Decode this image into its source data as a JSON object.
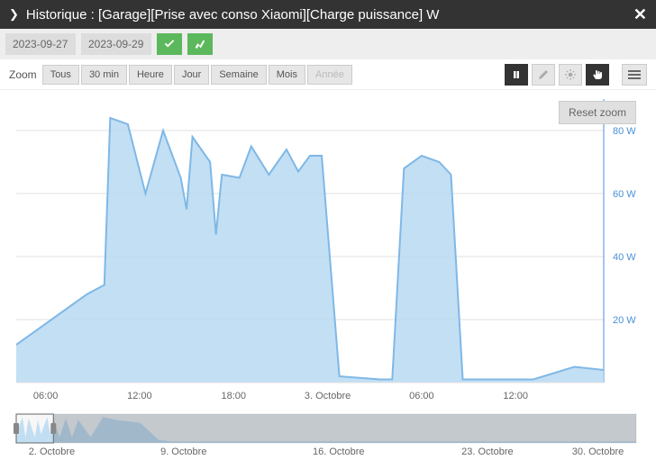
{
  "header": {
    "title": "Historique : [Garage][Prise avec conso Xiaomi][Charge puissance] W"
  },
  "toolbar": {
    "date_from": "2023-09-27",
    "date_to": "2023-09-29",
    "confirm_icon": "check",
    "compare_icon": "chart"
  },
  "zoom": {
    "label": "Zoom",
    "buttons": [
      "Tous",
      "30 min",
      "Heure",
      "Jour",
      "Semaine",
      "Mois",
      "Année"
    ],
    "disabled_index": 6
  },
  "reset_zoom_label": "Reset zoom",
  "chart": {
    "type": "area",
    "y_unit": "W",
    "background_color": "#ffffff",
    "grid_color": "#e0e0e0",
    "series_fill": "#b9d9f2",
    "series_stroke": "#7fb8e6",
    "axis_text_color": "#666666",
    "y_axis_color": "#4a90d9",
    "ylim": [
      0,
      90
    ],
    "yticks": [
      20,
      40,
      60,
      80
    ],
    "ytick_labels": [
      "20 W",
      "40 W",
      "60 W",
      "80 W"
    ],
    "xticks": [
      0.05,
      0.21,
      0.37,
      0.53,
      0.69,
      0.85
    ],
    "xtick_labels": [
      "06:00",
      "12:00",
      "18:00",
      "3. Octobre",
      "06:00",
      "12:00"
    ],
    "data": [
      [
        0.0,
        12
      ],
      [
        0.12,
        28
      ],
      [
        0.15,
        31
      ],
      [
        0.16,
        84
      ],
      [
        0.19,
        82
      ],
      [
        0.22,
        60
      ],
      [
        0.25,
        80
      ],
      [
        0.28,
        65
      ],
      [
        0.29,
        55
      ],
      [
        0.3,
        78
      ],
      [
        0.33,
        70
      ],
      [
        0.34,
        47
      ],
      [
        0.35,
        66
      ],
      [
        0.38,
        65
      ],
      [
        0.4,
        75
      ],
      [
        0.43,
        66
      ],
      [
        0.46,
        74
      ],
      [
        0.48,
        67
      ],
      [
        0.5,
        72
      ],
      [
        0.52,
        72
      ],
      [
        0.55,
        2
      ],
      [
        0.62,
        1
      ],
      [
        0.64,
        1
      ],
      [
        0.66,
        68
      ],
      [
        0.69,
        72
      ],
      [
        0.72,
        70
      ],
      [
        0.74,
        66
      ],
      [
        0.76,
        1
      ],
      [
        0.88,
        1
      ],
      [
        0.95,
        5
      ],
      [
        1.0,
        4
      ]
    ]
  },
  "navigator": {
    "xticks": [
      0.02,
      0.27,
      0.52,
      0.76,
      0.98
    ],
    "xtick_labels": [
      "2. Octobre",
      "9. Octobre",
      "16. Octobre",
      "23. Octobre",
      "30. Octobre"
    ],
    "window": [
      0.0,
      0.06
    ],
    "data": [
      [
        0.0,
        0.3
      ],
      [
        0.01,
        0.9
      ],
      [
        0.015,
        0.2
      ],
      [
        0.02,
        0.85
      ],
      [
        0.03,
        0.2
      ],
      [
        0.035,
        0.8
      ],
      [
        0.04,
        0.3
      ],
      [
        0.05,
        0.9
      ],
      [
        0.055,
        0.3
      ],
      [
        0.06,
        0.85
      ],
      [
        0.07,
        0.2
      ],
      [
        0.08,
        0.85
      ],
      [
        0.09,
        0.2
      ],
      [
        0.1,
        0.8
      ],
      [
        0.12,
        0.2
      ],
      [
        0.14,
        0.9
      ],
      [
        0.16,
        0.8
      ],
      [
        0.2,
        0.7
      ],
      [
        0.23,
        0.1
      ],
      [
        0.25,
        0.05
      ],
      [
        1.0,
        0.05
      ]
    ]
  }
}
